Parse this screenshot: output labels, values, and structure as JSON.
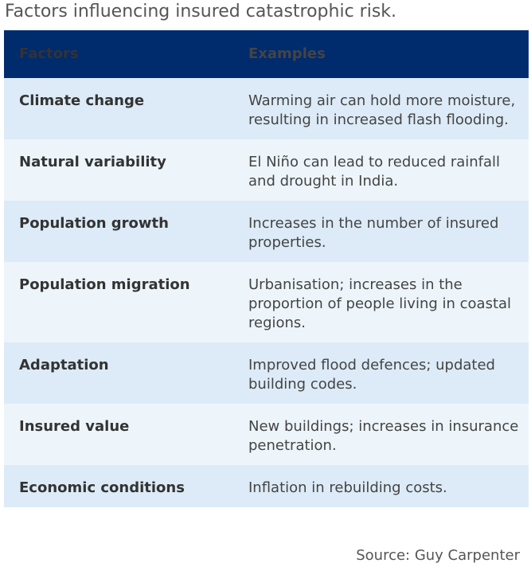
{
  "title": "Factors influencing insured catastrophic risk.",
  "table": {
    "headers": [
      "Factors",
      "Examples"
    ],
    "rows": [
      {
        "factor": "Climate change",
        "example": "Warming air can hold more moisture, resulting in increased flash flooding."
      },
      {
        "factor": "Natural variability",
        "example": "El Niño can lead to reduced rainfall and drought in India."
      },
      {
        "factor": "Population growth",
        "example": "Increases in the number of insured properties."
      },
      {
        "factor": "Population migration",
        "example": "Urbanisation; increases in the proportion of people living in coastal regions."
      },
      {
        "factor": "Adaptation",
        "example": "Improved flood defences; updated building codes."
      },
      {
        "factor": "Insured value",
        "example": "New buildings; increases in insurance penetration."
      },
      {
        "factor": "Economic conditions",
        "example": "Inflation in rebuilding costs."
      }
    ]
  },
  "source": "Source: Guy Carpenter",
  "colors": {
    "header_bg": "#002b6d",
    "row_odd": "#dcebf7",
    "row_even": "#edf5fb"
  }
}
